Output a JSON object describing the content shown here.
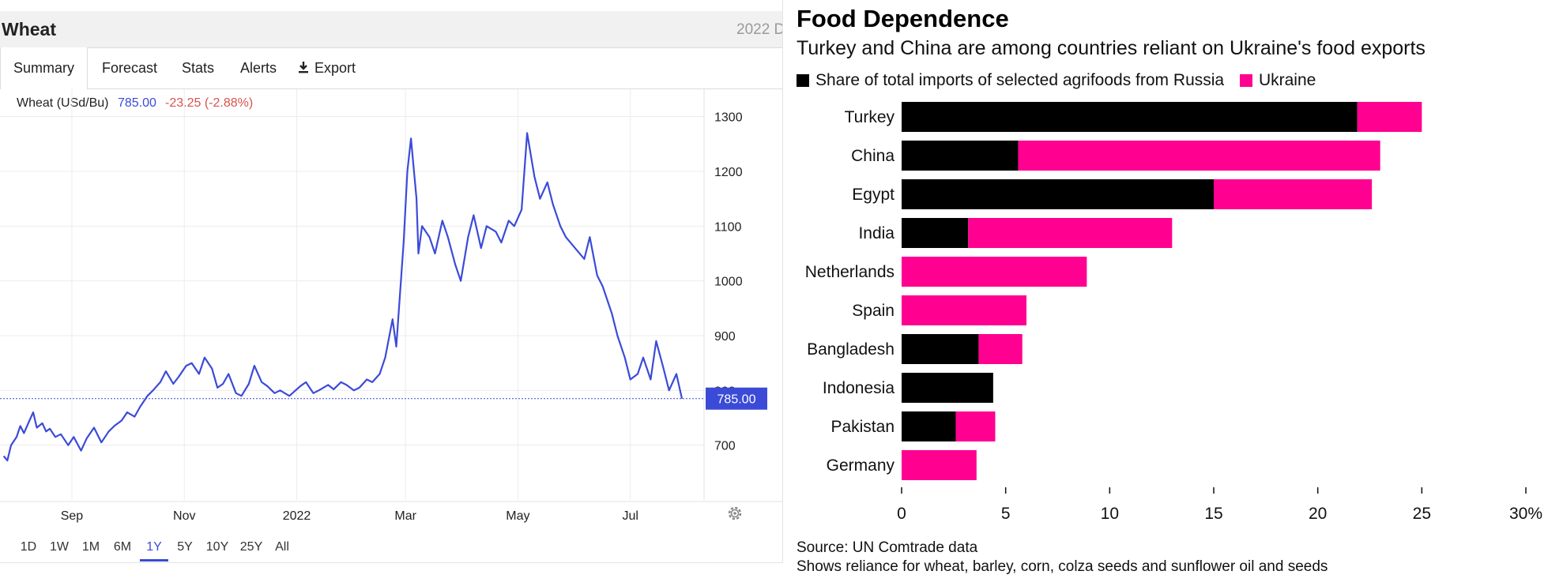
{
  "left_widget": {
    "title": "Wheat",
    "header_right": "2022 D",
    "tabs": [
      {
        "label": "Summary",
        "active": true
      },
      {
        "label": "Forecast",
        "active": false
      },
      {
        "label": "Stats",
        "active": false
      },
      {
        "label": "Alerts",
        "active": false
      },
      {
        "label": "Export",
        "active": false,
        "icon": "download-icon"
      }
    ],
    "quote": {
      "name": "Wheat (USd/Bu)",
      "price": "785.00",
      "change": "-23.25 (-2.88%)"
    },
    "price_tag": "785.00",
    "time_ranges": [
      {
        "label": "1D",
        "active": false
      },
      {
        "label": "1W",
        "active": false
      },
      {
        "label": "1M",
        "active": false
      },
      {
        "label": "6M",
        "active": false
      },
      {
        "label": "1Y",
        "active": true
      },
      {
        "label": "5Y",
        "active": false
      },
      {
        "label": "10Y",
        "active": false
      },
      {
        "label": "25Y",
        "active": false
      },
      {
        "label": "All",
        "active": false
      }
    ],
    "settings_icon": "gear-icon",
    "line_color": "#3b4bd8",
    "negative_color": "#d9534f"
  },
  "right_chart": {
    "title": "Food Dependence",
    "subtitle": "Turkey and China are among countries reliant on Ukraine's food exports",
    "legend_prefix": "Share of total imports of selected agrifoods from",
    "source": "Source: UN Comtrade data",
    "note": "Shows reliance for wheat, barley, corn, colza seeds and sunflower oil and seeds"
  },
  "chart_data": [
    {
      "type": "line",
      "title": "Wheat",
      "ylabel": "USd/Bu",
      "ylim": [
        600,
        1350
      ],
      "yticks": [
        700,
        800,
        900,
        1000,
        1100,
        1200,
        1300
      ],
      "ytick_labels": [
        "700",
        "800",
        "900",
        "1000",
        "1100",
        "1200",
        "1300"
      ],
      "x_ticks": [
        {
          "label": "Sep",
          "x": "2021-09-01"
        },
        {
          "label": "Nov",
          "x": "2021-11-01"
        },
        {
          "label": "2022",
          "x": "2022-01-01"
        },
        {
          "label": "Mar",
          "x": "2022-03-01"
        },
        {
          "label": "May",
          "x": "2022-05-01"
        },
        {
          "label": "Jul",
          "x": "2022-07-01"
        }
      ],
      "xlim": [
        "2021-07-24",
        "2022-08-10"
      ],
      "last_value": 785,
      "reference_line": 785,
      "series": [
        {
          "x": [
            "2021-07-26",
            "2021-07-28",
            "2021-07-30",
            "2021-08-02",
            "2021-08-04",
            "2021-08-06",
            "2021-08-09",
            "2021-08-11",
            "2021-08-13",
            "2021-08-16",
            "2021-08-18",
            "2021-08-20",
            "2021-08-23",
            "2021-08-26",
            "2021-08-30",
            "2021-09-02",
            "2021-09-06",
            "2021-09-09",
            "2021-09-13",
            "2021-09-17",
            "2021-09-21",
            "2021-09-24",
            "2021-09-28",
            "2021-10-01",
            "2021-10-05",
            "2021-10-08",
            "2021-10-12",
            "2021-10-15",
            "2021-10-19",
            "2021-10-22",
            "2021-10-26",
            "2021-10-29",
            "2021-11-02",
            "2021-11-05",
            "2021-11-09",
            "2021-11-12",
            "2021-11-16",
            "2021-11-19",
            "2021-11-22",
            "2021-11-25",
            "2021-11-29",
            "2021-12-02",
            "2021-12-06",
            "2021-12-09",
            "2021-12-13",
            "2021-12-16",
            "2021-12-20",
            "2021-12-23",
            "2021-12-28",
            "2022-01-03",
            "2022-01-06",
            "2022-01-10",
            "2022-01-13",
            "2022-01-18",
            "2022-01-21",
            "2022-01-25",
            "2022-01-28",
            "2022-02-01",
            "2022-02-04",
            "2022-02-08",
            "2022-02-11",
            "2022-02-15",
            "2022-02-18",
            "2022-02-22",
            "2022-02-24",
            "2022-02-28",
            "2022-03-02",
            "2022-03-04",
            "2022-03-07",
            "2022-03-08",
            "2022-03-10",
            "2022-03-14",
            "2022-03-17",
            "2022-03-21",
            "2022-03-24",
            "2022-03-28",
            "2022-03-31",
            "2022-04-04",
            "2022-04-07",
            "2022-04-11",
            "2022-04-14",
            "2022-04-19",
            "2022-04-22",
            "2022-04-26",
            "2022-04-29",
            "2022-05-03",
            "2022-05-06",
            "2022-05-10",
            "2022-05-13",
            "2022-05-17",
            "2022-05-20",
            "2022-05-24",
            "2022-05-27",
            "2022-06-01",
            "2022-06-06",
            "2022-06-09",
            "2022-06-13",
            "2022-06-16",
            "2022-06-21",
            "2022-06-24",
            "2022-06-28",
            "2022-07-01",
            "2022-07-05",
            "2022-07-08",
            "2022-07-12",
            "2022-07-15",
            "2022-07-19",
            "2022-07-22",
            "2022-07-26",
            "2022-07-29"
          ],
          "values": [
            680,
            672,
            700,
            715,
            735,
            722,
            745,
            760,
            732,
            740,
            725,
            730,
            715,
            720,
            700,
            715,
            690,
            712,
            732,
            705,
            725,
            735,
            745,
            760,
            752,
            770,
            790,
            800,
            815,
            835,
            812,
            825,
            845,
            850,
            830,
            860,
            840,
            805,
            812,
            830,
            795,
            790,
            812,
            845,
            815,
            808,
            795,
            800,
            790,
            808,
            815,
            795,
            800,
            810,
            802,
            815,
            810,
            800,
            805,
            820,
            815,
            830,
            860,
            930,
            880,
            1070,
            1200,
            1260,
            1150,
            1050,
            1100,
            1080,
            1050,
            1110,
            1080,
            1030,
            1000,
            1080,
            1120,
            1060,
            1100,
            1090,
            1070,
            1110,
            1100,
            1130,
            1270,
            1190,
            1150,
            1180,
            1140,
            1100,
            1080,
            1060,
            1040,
            1080,
            1010,
            990,
            940,
            900,
            860,
            820,
            830,
            860,
            820,
            890,
            840,
            800,
            830,
            785
          ]
        }
      ]
    },
    {
      "type": "bar",
      "stacked": true,
      "orientation": "horizontal",
      "title": "Food Dependence",
      "subtitle": "Turkey and China are among countries reliant on Ukraine's food exports",
      "categories": [
        "Turkey",
        "China",
        "Egypt",
        "India",
        "Netherlands",
        "Spain",
        "Bangladesh",
        "Indonesia",
        "Pakistan",
        "Germany"
      ],
      "series": [
        {
          "name": "Russia",
          "color": "#000000",
          "values": [
            21.9,
            5.6,
            15.0,
            3.2,
            0.0,
            0.0,
            3.7,
            4.4,
            2.6,
            0.0
          ]
        },
        {
          "name": "Ukraine",
          "color": "#ff0090",
          "values": [
            3.1,
            17.4,
            7.6,
            9.8,
            8.9,
            6.0,
            2.1,
            0.0,
            1.9,
            3.6
          ]
        }
      ],
      "xlim": [
        0,
        30
      ],
      "xticks": [
        0,
        5,
        10,
        15,
        20,
        25,
        30
      ],
      "xtick_labels": [
        "0",
        "5",
        "10",
        "15",
        "20",
        "25",
        "30%"
      ],
      "legend_position": "top-left"
    }
  ]
}
